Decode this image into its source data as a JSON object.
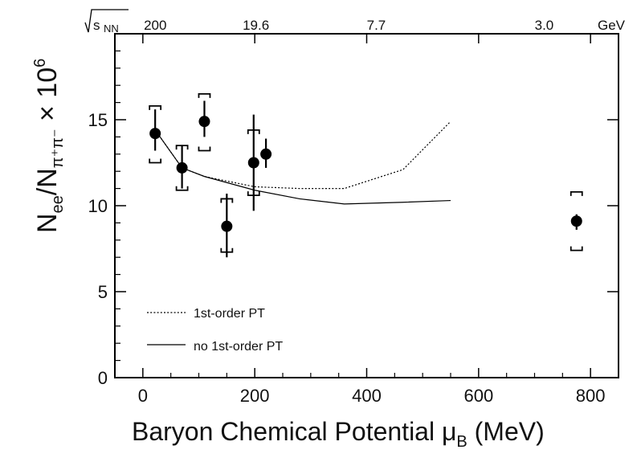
{
  "chart_data": {
    "type": "scatter",
    "title": "",
    "xlabel_main": "Baryon Chemical Potential ",
    "xlabel_mu": "μ",
    "xlabel_sub": "B",
    "xlabel_unit": " (MeV)",
    "ylabel_N": "N",
    "ylabel_ee": "ee",
    "ylabel_slash": "/N",
    "ylabel_pipi": "π⁺π⁻",
    "ylabel_times": " × 10",
    "ylabel_exp": "6",
    "xlim": [
      -50,
      850
    ],
    "ylim": [
      0,
      20
    ],
    "x_ticks": [
      0,
      200,
      400,
      600,
      800
    ],
    "y_ticks": [
      0,
      5,
      10,
      15
    ],
    "top_axis": {
      "label_sqrt": "√",
      "label_s": "s",
      "label_sub": "NN",
      "ticks": [
        {
          "label": "200",
          "mu_B": 25
        },
        {
          "label": "19.6",
          "mu_B": 205
        },
        {
          "label": "7.7",
          "mu_B": 420
        },
        {
          "label": "3.0",
          "mu_B": 720
        }
      ],
      "unit": "GeV"
    },
    "series": [
      {
        "name": "",
        "style": "points",
        "points": [
          {
            "x": 22,
            "y": 14.2,
            "stat_lo": 13.2,
            "stat_hi": 15.6,
            "sys_lo": 12.5,
            "sys_hi": 15.8
          },
          {
            "x": 70,
            "y": 12.2,
            "stat_lo": 11.0,
            "stat_hi": 13.5,
            "sys_lo": 10.9,
            "sys_hi": 13.5
          },
          {
            "x": 110,
            "y": 14.9,
            "stat_lo": 14.0,
            "stat_hi": 16.1,
            "sys_lo": 13.2,
            "sys_hi": 16.5
          },
          {
            "x": 150,
            "y": 8.8,
            "stat_lo": 7.0,
            "stat_hi": 10.7,
            "sys_lo": 7.3,
            "sys_hi": 10.4
          },
          {
            "x": 198,
            "y": 12.5,
            "stat_lo": 9.7,
            "stat_hi": 15.3,
            "sys_lo": 10.6,
            "sys_hi": 14.4
          },
          {
            "x": 220,
            "y": 13.0,
            "stat_lo": 12.2,
            "stat_hi": 13.9,
            "sys_lo": null,
            "sys_hi": null
          },
          {
            "x": 775,
            "y": 9.1,
            "stat_lo": 8.6,
            "stat_hi": 9.5,
            "sys_lo": 7.4,
            "sys_hi": 10.8
          }
        ]
      },
      {
        "name": "1st-order PT",
        "style": "dotted",
        "x": [
          22,
          70,
          110,
          200,
          280,
          360,
          465,
          550
        ],
        "y": [
          14.4,
          12.2,
          11.7,
          11.1,
          11.0,
          11.0,
          12.1,
          14.9
        ]
      },
      {
        "name": "no 1st-order PT",
        "style": "solid",
        "x": [
          22,
          70,
          110,
          200,
          280,
          360,
          465,
          550
        ],
        "y": [
          14.4,
          12.2,
          11.7,
          10.9,
          10.4,
          10.1,
          10.2,
          10.3
        ]
      }
    ],
    "legend": "bottom-left",
    "grid": false
  }
}
